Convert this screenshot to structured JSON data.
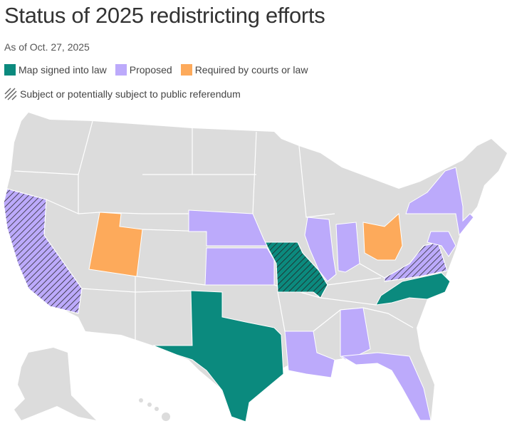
{
  "title": "Status of 2025 redistricting efforts",
  "subtitle": "As of Oct. 27, 2025",
  "legend": [
    {
      "label": "Map signed into law",
      "color": "#0b8a7e"
    },
    {
      "label": "Proposed",
      "color": "#bcaafb"
    },
    {
      "label": "Required by courts or law",
      "color": "#fdaa5b"
    }
  ],
  "hatch_label": "Subject or potentially subject to public referendum",
  "colors": {
    "base": "#dcdcdc",
    "border": "#ffffff"
  },
  "states": [
    {
      "name": "California",
      "status": "Proposed",
      "referendum": true
    },
    {
      "name": "Utah",
      "status": "Required by courts or law",
      "referendum": false
    },
    {
      "name": "Texas",
      "status": "Map signed into law",
      "referendum": false
    },
    {
      "name": "Missouri",
      "status": "Map signed into law",
      "referendum": true
    },
    {
      "name": "North Carolina",
      "status": "Map signed into law",
      "referendum": false
    },
    {
      "name": "Nebraska",
      "status": "Proposed",
      "referendum": false
    },
    {
      "name": "Kansas",
      "status": "Proposed",
      "referendum": false
    },
    {
      "name": "Illinois",
      "status": "Proposed",
      "referendum": false
    },
    {
      "name": "Indiana",
      "status": "Proposed",
      "referendum": false
    },
    {
      "name": "Ohio",
      "status": "Required by courts or law",
      "referendum": false
    },
    {
      "name": "New York",
      "status": "Proposed",
      "referendum": false
    },
    {
      "name": "Virginia",
      "status": "Proposed",
      "referendum": true
    },
    {
      "name": "Maryland",
      "status": "Proposed",
      "referendum": false
    },
    {
      "name": "Louisiana",
      "status": "Proposed",
      "referendum": false
    },
    {
      "name": "Alabama",
      "status": "Proposed",
      "referendum": false
    },
    {
      "name": "Florida",
      "status": "Proposed",
      "referendum": false
    }
  ]
}
